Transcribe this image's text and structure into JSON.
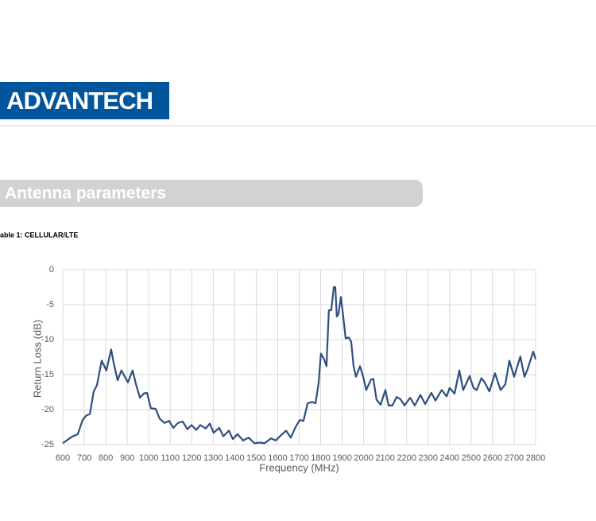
{
  "header": {
    "logo": "ADVANTECH"
  },
  "section": {
    "title": "Antenna parameters"
  },
  "table_caption": "able 1: CELLULAR/LTE",
  "chart_data": {
    "type": "line",
    "x_label": "Frequency (MHz)",
    "y_label": "Return Loss (dB)",
    "color": "#2e4f7e",
    "grid": true,
    "xlim": [
      600,
      2800
    ],
    "xticks": [
      600,
      700,
      800,
      900,
      1000,
      1100,
      1200,
      1300,
      1400,
      1500,
      1600,
      1700,
      1800,
      1900,
      2000,
      2100,
      2200,
      2300,
      2400,
      2500,
      2600,
      2700,
      2800
    ],
    "ylim": [
      -25,
      0
    ],
    "yticks": [
      0,
      -5,
      -10,
      -15,
      -20,
      -25
    ],
    "x": [
      600,
      641,
      670,
      692,
      707,
      726,
      744,
      759,
      781,
      803,
      825,
      836,
      855,
      873,
      903,
      925,
      940,
      959,
      977,
      992,
      1010,
      1032,
      1051,
      1073,
      1095,
      1114,
      1136,
      1158,
      1180,
      1199,
      1221,
      1240,
      1265,
      1284,
      1302,
      1328,
      1347,
      1373,
      1391,
      1413,
      1439,
      1465,
      1491,
      1517,
      1539,
      1569,
      1591,
      1617,
      1639,
      1661,
      1683,
      1702,
      1720,
      1739,
      1761,
      1776,
      1790,
      1801,
      1816,
      1827,
      1838,
      1849,
      1861,
      1868,
      1875,
      1883,
      1894,
      1905,
      1916,
      1931,
      1942,
      1953,
      1964,
      1983,
      1997,
      2012,
      2034,
      2045,
      2060,
      2079,
      2101,
      2116,
      2134,
      2153,
      2171,
      2190,
      2216,
      2238,
      2264,
      2286,
      2315,
      2334,
      2363,
      2386,
      2400,
      2423,
      2445,
      2463,
      2493,
      2511,
      2526,
      2548,
      2563,
      2585,
      2611,
      2637,
      2659,
      2678,
      2700,
      2729,
      2748,
      2763,
      2789,
      2800
    ],
    "values": [
      -24.8,
      -23.9,
      -23.5,
      -21.5,
      -20.9,
      -20.6,
      -17.4,
      -16.5,
      -13.0,
      -14.4,
      -11.4,
      -13.2,
      -15.8,
      -14.4,
      -16.1,
      -14.4,
      -16.3,
      -18.3,
      -17.7,
      -17.6,
      -19.8,
      -19.9,
      -21.3,
      -21.9,
      -21.6,
      -22.6,
      -21.9,
      -21.7,
      -22.8,
      -22.2,
      -22.9,
      -22.2,
      -22.7,
      -22.0,
      -23.3,
      -22.6,
      -23.8,
      -23.0,
      -24.2,
      -23.5,
      -24.4,
      -24.0,
      -24.8,
      -24.7,
      -24.8,
      -24.1,
      -24.4,
      -23.6,
      -23.0,
      -24.0,
      -22.5,
      -21.5,
      -21.6,
      -19.1,
      -18.9,
      -19.1,
      -16.3,
      -12.0,
      -12.8,
      -13.8,
      -5.8,
      -5.8,
      -2.5,
      -2.5,
      -6.7,
      -6.3,
      -3.9,
      -6.7,
      -9.8,
      -9.7,
      -10.3,
      -13.8,
      -15.3,
      -13.8,
      -15.2,
      -17.2,
      -15.7,
      -15.6,
      -18.6,
      -19.3,
      -17.2,
      -19.4,
      -19.4,
      -18.2,
      -18.5,
      -19.4,
      -18.3,
      -19.4,
      -17.9,
      -19.2,
      -17.6,
      -18.7,
      -17.2,
      -18.1,
      -16.9,
      -17.7,
      -14.4,
      -17.2,
      -15.2,
      -16.9,
      -17.2,
      -15.5,
      -16.1,
      -17.4,
      -14.8,
      -17.2,
      -16.4,
      -13.0,
      -15.3,
      -12.4,
      -15.3,
      -14.2,
      -11.7,
      -12.8
    ]
  }
}
